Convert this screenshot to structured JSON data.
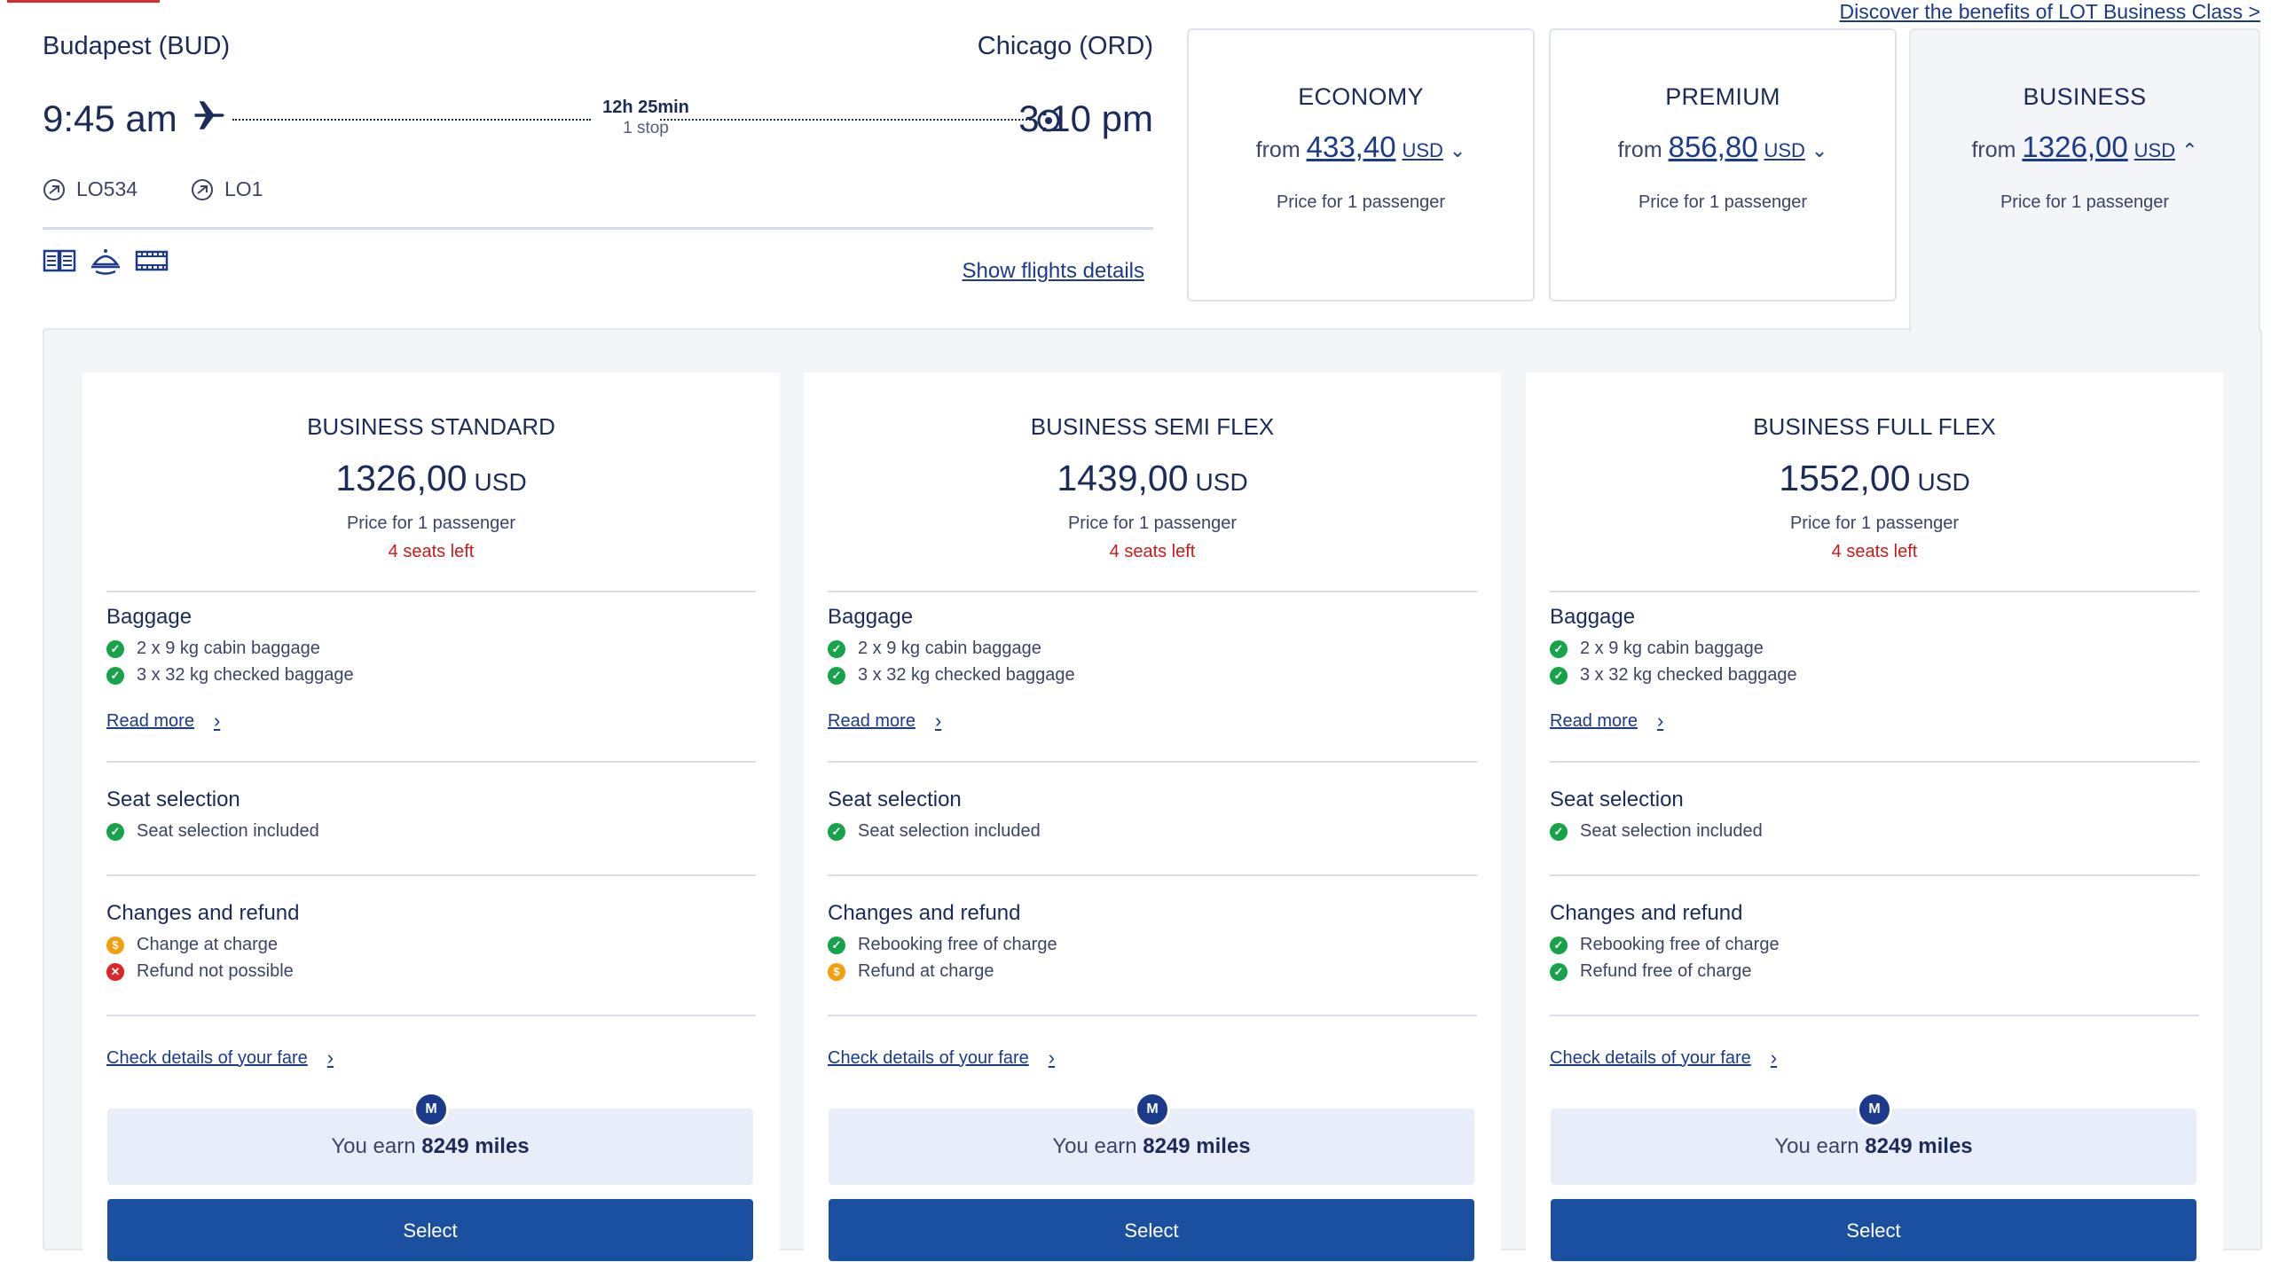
{
  "header": {
    "discover_link": "Discover the benefits of LOT Business Class >"
  },
  "flight": {
    "origin": "Budapest (BUD)",
    "destination": "Chicago (ORD)",
    "departure_time": "9:45 am",
    "arrival_time": "3:10 pm",
    "duration": "12h 25min",
    "stops": "1 stop",
    "flight_numbers": [
      "LO534",
      "LO1"
    ],
    "amenity_icons": [
      "menu-book-icon",
      "meal-service-icon",
      "entertainment-screen-icon"
    ],
    "show_details_link": "Show flights details"
  },
  "cabins": [
    {
      "name": "ECONOMY",
      "from_label": "from",
      "price": "433,40",
      "currency": "USD",
      "chevron": "down",
      "per_passenger": "Price for 1 passenger",
      "selected": false
    },
    {
      "name": "PREMIUM",
      "from_label": "from",
      "price": "856,80",
      "currency": "USD",
      "chevron": "down",
      "per_passenger": "Price for 1 passenger",
      "selected": false
    },
    {
      "name": "BUSINESS",
      "from_label": "from",
      "price": "1326,00",
      "currency": "USD",
      "chevron": "up",
      "per_passenger": "Price for 1 passenger",
      "selected": true
    }
  ],
  "fares": [
    {
      "name": "BUSINESS STANDARD",
      "price": "1326,00",
      "currency": "USD",
      "per_passenger": "Price for 1 passenger",
      "seats_left": "4 seats left",
      "baggage_title": "Baggage",
      "baggage": [
        {
          "status": "ok",
          "text": "2 x 9 kg cabin baggage"
        },
        {
          "status": "ok",
          "text": "3 x 32 kg checked baggage"
        }
      ],
      "read_more": "Read more",
      "seat_title": "Seat selection",
      "seat": [
        {
          "status": "ok",
          "text": "Seat selection included"
        }
      ],
      "changes_title": "Changes and refund",
      "changes": [
        {
          "status": "warn",
          "text": "Change at charge"
        },
        {
          "status": "no",
          "text": "Refund not possible"
        }
      ],
      "check_details": "Check details of your fare",
      "miles_badge": "M",
      "miles_prefix": "You earn",
      "miles_value": "8249 miles",
      "select_label": "Select"
    },
    {
      "name": "BUSINESS SEMI FLEX",
      "price": "1439,00",
      "currency": "USD",
      "per_passenger": "Price for 1 passenger",
      "seats_left": "4 seats left",
      "baggage_title": "Baggage",
      "baggage": [
        {
          "status": "ok",
          "text": "2 x 9 kg cabin baggage"
        },
        {
          "status": "ok",
          "text": "3 x 32 kg checked baggage"
        }
      ],
      "read_more": "Read more",
      "seat_title": "Seat selection",
      "seat": [
        {
          "status": "ok",
          "text": "Seat selection included"
        }
      ],
      "changes_title": "Changes and refund",
      "changes": [
        {
          "status": "ok",
          "text": "Rebooking free of charge"
        },
        {
          "status": "warn",
          "text": "Refund at charge"
        }
      ],
      "check_details": "Check details of your fare",
      "miles_badge": "M",
      "miles_prefix": "You earn",
      "miles_value": "8249 miles",
      "select_label": "Select"
    },
    {
      "name": "BUSINESS FULL FLEX",
      "price": "1552,00",
      "currency": "USD",
      "per_passenger": "Price for 1 passenger",
      "seats_left": "4 seats left",
      "baggage_title": "Baggage",
      "baggage": [
        {
          "status": "ok",
          "text": "2 x 9 kg cabin baggage"
        },
        {
          "status": "ok",
          "text": "3 x 32 kg checked baggage"
        }
      ],
      "read_more": "Read more",
      "seat_title": "Seat selection",
      "seat": [
        {
          "status": "ok",
          "text": "Seat selection included"
        }
      ],
      "changes_title": "Changes and refund",
      "changes": [
        {
          "status": "ok",
          "text": "Rebooking free of charge"
        },
        {
          "status": "ok",
          "text": "Refund free of charge"
        }
      ],
      "check_details": "Check details of your fare",
      "miles_badge": "M",
      "miles_prefix": "You earn",
      "miles_value": "8249 miles",
      "select_label": "Select"
    }
  ],
  "colors": {
    "brand_navy": "#1b2b5a",
    "link_blue": "#1b3a8c",
    "button_blue": "#1b4fa0",
    "ok_green": "#17a34a",
    "warn_orange": "#f59e0b",
    "error_red": "#dc2626",
    "seats_red": "#cc1a1a"
  }
}
